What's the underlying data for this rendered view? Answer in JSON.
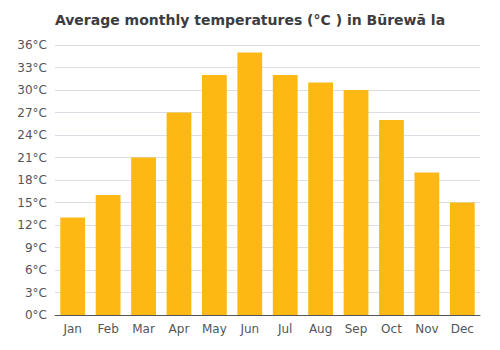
{
  "chart_data": {
    "type": "bar",
    "title": "Average monthly temperatures (°C ) in Būrewā la",
    "categories": [
      "Jan",
      "Feb",
      "Mar",
      "Apr",
      "May",
      "Jun",
      "Jul",
      "Aug",
      "Sep",
      "Oct",
      "Nov",
      "Dec"
    ],
    "values": [
      13,
      16,
      21,
      27,
      32,
      35,
      32,
      31,
      30,
      26,
      19,
      15
    ],
    "color": "#FDB813",
    "ylim": [
      0,
      36
    ],
    "yticks": [
      {
        "value": 0,
        "label": "0°C"
      },
      {
        "value": 3,
        "label": "3°C"
      },
      {
        "value": 6,
        "label": "6°C"
      },
      {
        "value": 9,
        "label": "9°C"
      },
      {
        "value": 12,
        "label": "12°C"
      },
      {
        "value": 15,
        "label": "15°C"
      },
      {
        "value": 18,
        "label": "18°C"
      },
      {
        "value": 21,
        "label": "21°C"
      },
      {
        "value": 24,
        "label": "24°C"
      },
      {
        "value": 27,
        "label": "27°C"
      },
      {
        "value": 30,
        "label": "30°C"
      },
      {
        "value": 33,
        "label": "33°C"
      },
      {
        "value": 36,
        "label": "36°C"
      }
    ],
    "grid": true
  }
}
